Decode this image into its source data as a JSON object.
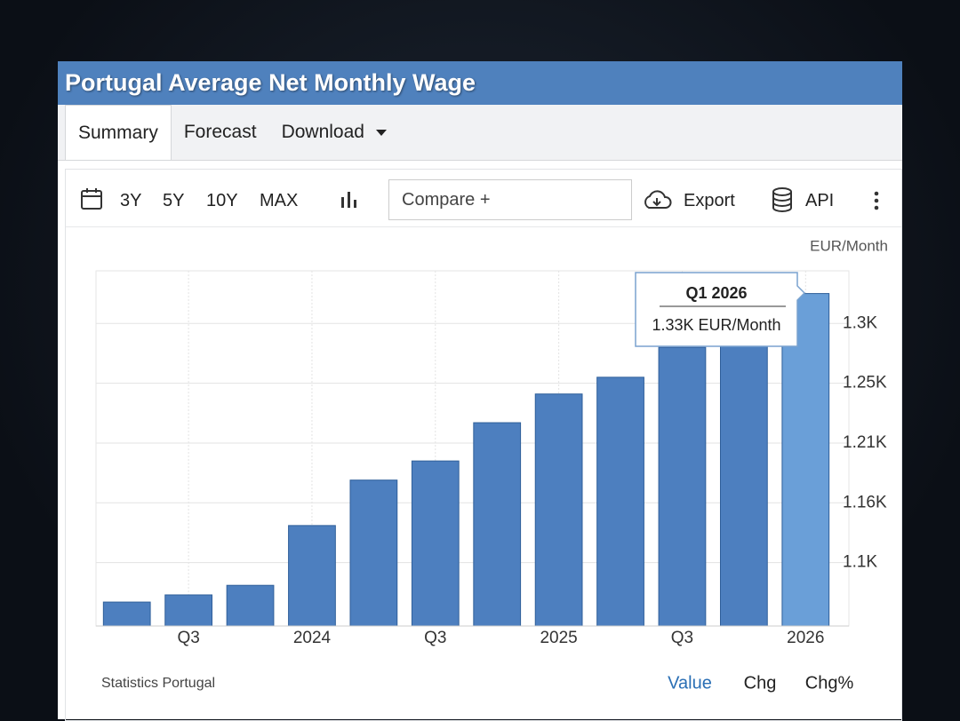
{
  "ui": {
    "title": "Portugal Average Net Monthly Wage",
    "tabs": [
      "Summary",
      "Forecast",
      "Download"
    ],
    "ranges": [
      "3Y",
      "5Y",
      "10Y",
      "MAX"
    ],
    "compare": "Compare +",
    "export": "Export",
    "api": "API",
    "source": "Statistics Portugal",
    "views": [
      "Value",
      "Chg",
      "Chg%"
    ],
    "tooltip": {
      "title": "Q1 2026",
      "value": "1.33K EUR/Month"
    }
  },
  "chart_data": {
    "type": "bar",
    "y_label": "EUR/Month",
    "categories": [
      null,
      "Q3",
      null,
      "2024",
      null,
      "Q3",
      null,
      "2025",
      null,
      "Q3",
      null,
      "2026"
    ],
    "values": [
      1072,
      1078,
      1086,
      1136,
      1174,
      1190,
      1222,
      1246,
      1260,
      1285,
      1300,
      1330
    ],
    "colors": [
      "#4d7fbf",
      "#4d7fbf",
      "#4d7fbf",
      "#4d7fbf",
      "#4d7fbf",
      "#4d7fbf",
      "#4d7fbf",
      "#4d7fbf",
      "#4d7fbf",
      "#4d7fbf",
      "#4d7fbf",
      "#6a9fd8"
    ],
    "ylim": [
      1052,
      1349
    ],
    "yticks": [
      {
        "value": 1105,
        "label": "1.1K"
      },
      {
        "value": 1155,
        "label": "1.16K"
      },
      {
        "value": 1205,
        "label": "1.21K"
      },
      {
        "value": 1255,
        "label": "1.25K"
      },
      {
        "value": 1305,
        "label": "1.3K"
      }
    ],
    "grid": true
  }
}
